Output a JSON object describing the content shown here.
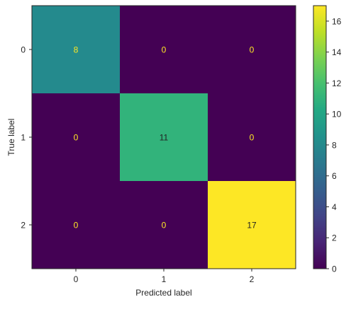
{
  "chart_data": {
    "type": "heatmap",
    "title": "",
    "xlabel": "Predicted label",
    "ylabel": "True label",
    "x_categories": [
      "0",
      "1",
      "2"
    ],
    "y_categories": [
      "0",
      "1",
      "2"
    ],
    "values": [
      [
        8,
        0,
        0
      ],
      [
        0,
        11,
        0
      ],
      [
        0,
        0,
        17
      ]
    ],
    "colormap": "viridis",
    "vmin": 0,
    "vmax": 17,
    "colorbar_ticks": [
      0,
      2,
      4,
      6,
      8,
      10,
      12,
      14,
      16
    ],
    "text_color_dark_cells": "#fde725",
    "text_color_light_cells": "#222222"
  }
}
